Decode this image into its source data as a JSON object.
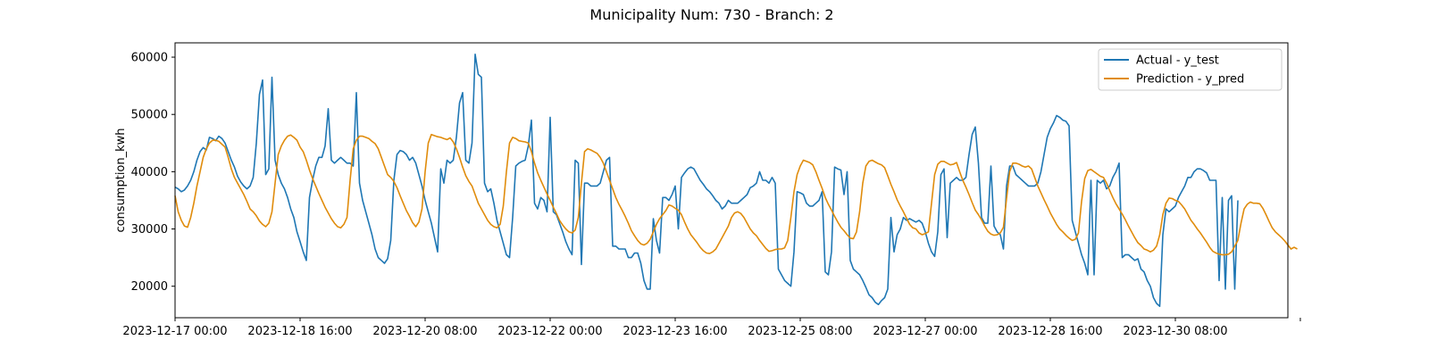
{
  "chart_data": {
    "type": "line",
    "title": "Municipality Num: 730 - Branch: 2",
    "xlabel": "",
    "ylabel": "consumption_kwh",
    "xlim": [
      "2023-12-17 00:00",
      "2023-12-31 20:00"
    ],
    "ylim": [
      14500,
      62500
    ],
    "x_start": "2023-12-17 00:00",
    "x_step_hours": 1,
    "x_ticks": [
      "2023-12-17 00:00",
      "2023-12-18 16:00",
      "2023-12-20 08:00",
      "2023-12-22 00:00",
      "2023-12-23 16:00",
      "2023-12-25 08:00",
      "2023-12-27 00:00",
      "2023-12-28 16:00",
      "2023-12-30 08:00",
      "2023-12-31 23:59"
    ],
    "x_tick_labels": [
      "2023-12-17 00:00",
      "2023-12-18 16:00",
      "2023-12-20 08:00",
      "2023-12-22 00:00",
      "2023-12-23 16:00",
      "2023-12-25 08:00",
      "2023-12-27 00:00",
      "2023-12-28 16:00",
      "2023-12-30 08:00",
      ""
    ],
    "y_ticks": [
      20000,
      30000,
      40000,
      50000,
      60000
    ],
    "y_tick_labels": [
      "20000",
      "30000",
      "40000",
      "50000",
      "60000"
    ],
    "grid": false,
    "legend": {
      "position": "top-right"
    },
    "series": [
      {
        "name": "Actual - y_test",
        "color": "#1f77b4",
        "values": [
          37300,
          37000,
          36500,
          36800,
          37500,
          38500,
          40000,
          42000,
          43500,
          44200,
          43800,
          46000,
          45800,
          45400,
          46200,
          45800,
          45000,
          43500,
          42000,
          40800,
          39200,
          38200,
          37500,
          37000,
          37500,
          39000,
          45000,
          53500,
          56000,
          39500,
          40500,
          56500,
          42000,
          39500,
          38000,
          37000,
          35500,
          33500,
          32000,
          29500,
          27800,
          26000,
          24500,
          35500,
          38500,
          41000,
          42500,
          42500,
          44500,
          51000,
          42000,
          41500,
          42000,
          42500,
          42000,
          41500,
          41500,
          41000,
          53800,
          38000,
          35000,
          33000,
          31000,
          29000,
          26500,
          25000,
          24500,
          24000,
          24800,
          28000,
          38500,
          43000,
          43700,
          43500,
          43000,
          42000,
          42500,
          41500,
          39500,
          37500,
          35000,
          33000,
          31000,
          28500,
          26000,
          40500,
          38000,
          42000,
          41500,
          42000,
          46000,
          52000,
          53800,
          42000,
          41500,
          45000,
          60500,
          57000,
          56500,
          38000,
          36500,
          37000,
          34500,
          31500,
          29500,
          27500,
          25500,
          25000,
          32000,
          41000,
          41500,
          41800,
          42000,
          44500,
          49000,
          34500,
          33500,
          35500,
          35000,
          33000,
          49500,
          33000,
          32500,
          31000,
          29500,
          27800,
          26500,
          25500,
          42000,
          41500,
          23800,
          38000,
          38000,
          37500,
          37500,
          37500,
          38000,
          40000,
          42000,
          42500,
          27000,
          27000,
          26500,
          26500,
          26500,
          25000,
          25000,
          25800,
          25800,
          24000,
          21000,
          19500,
          19500,
          31800,
          28000,
          25800,
          35500,
          35500,
          35000,
          36000,
          37500,
          30000,
          39000,
          39800,
          40500,
          40800,
          40500,
          39500,
          38500,
          37800,
          37000,
          36500,
          35800,
          35000,
          34500,
          33500,
          34000,
          35000,
          34500,
          34500,
          34500,
          35000,
          35500,
          36000,
          37200,
          37500,
          38000,
          40000,
          38500,
          38500,
          38000,
          39000,
          38000,
          23000,
          22000,
          21000,
          20500,
          20000,
          26000,
          36500,
          36300,
          36000,
          34500,
          34000,
          34000,
          34500,
          35000,
          36500,
          22500,
          22000,
          26000,
          40800,
          40500,
          40300,
          36000,
          40000,
          24500,
          23000,
          22500,
          22000,
          21000,
          19800,
          18500,
          18000,
          17200,
          16800,
          17500,
          18000,
          19500,
          32000,
          26000,
          29000,
          30000,
          32000,
          31500,
          31800,
          31500,
          31200,
          31500,
          31000,
          29500,
          27500,
          26000,
          25200,
          29500,
          39500,
          40500,
          28500,
          38000,
          38500,
          39000,
          38500,
          38500,
          39000,
          43000,
          46500,
          47800,
          41500,
          32000,
          31000,
          31000,
          41000,
          30500,
          29500,
          29000,
          26500,
          37500,
          41000,
          41000,
          39500,
          39000,
          38500,
          38000,
          37500,
          37500,
          37500,
          38000,
          40000,
          43000,
          46000,
          47500,
          48500,
          49800,
          49500,
          49000,
          48800,
          48000,
          31500,
          29500,
          27500,
          25500,
          24000,
          22000,
          38500,
          22000,
          38500,
          38000,
          38500,
          37000,
          37500,
          39000,
          40000,
          41500,
          25000,
          25500,
          25500,
          25000,
          24500,
          24800,
          23000,
          22500,
          21000,
          20000,
          18000,
          17000,
          16500,
          29000,
          33500,
          33000,
          33500,
          34000,
          35500,
          36500,
          37500,
          39000,
          39000,
          40000,
          40500,
          40500,
          40200,
          39800,
          38500,
          38500,
          38500,
          21000,
          35500,
          19500,
          35000,
          35800,
          19500,
          35000
        ]
      },
      {
        "name": "Prediction - y_pred",
        "color": "#e08c0c",
        "values": [
          35800,
          33000,
          31500,
          30500,
          30300,
          32000,
          34500,
          37500,
          40000,
          42500,
          44000,
          45000,
          45500,
          45500,
          45300,
          44800,
          44300,
          42500,
          40500,
          39000,
          38000,
          37000,
          36000,
          34800,
          33500,
          33000,
          32300,
          31400,
          30800,
          30400,
          31000,
          33000,
          38000,
          43000,
          44500,
          45500,
          46200,
          46400,
          46000,
          45500,
          44300,
          43500,
          42000,
          40300,
          38800,
          37500,
          36200,
          35000,
          33800,
          32800,
          31800,
          31000,
          30400,
          30200,
          30800,
          32000,
          38500,
          44000,
          45500,
          46200,
          46200,
          46000,
          45800,
          45300,
          44900,
          44000,
          42500,
          41000,
          39500,
          39000,
          38300,
          37200,
          35800,
          34500,
          33200,
          32200,
          31100,
          30400,
          31200,
          33500,
          40000,
          45000,
          46500,
          46300,
          46100,
          46000,
          45800,
          45600,
          45900,
          45200,
          44000,
          42500,
          40800,
          39300,
          38300,
          37500,
          36000,
          34500,
          33500,
          32500,
          31500,
          30800,
          30400,
          30200,
          30800,
          34000,
          40000,
          45000,
          46000,
          45800,
          45400,
          45300,
          45200,
          45000,
          43500,
          41500,
          39800,
          38500,
          37300,
          36100,
          35000,
          33800,
          32700,
          31500,
          30700,
          30000,
          29500,
          29300,
          29800,
          32000,
          38000,
          43500,
          44000,
          43800,
          43500,
          43200,
          42500,
          41500,
          40000,
          38500,
          37000,
          35500,
          34300,
          33300,
          32200,
          31000,
          29700,
          28800,
          28000,
          27400,
          27200,
          27500,
          28200,
          29500,
          30800,
          31800,
          32500,
          33200,
          34200,
          34000,
          33600,
          33300,
          32500,
          31200,
          30000,
          29000,
          28300,
          27600,
          26800,
          26200,
          25800,
          25700,
          26000,
          26500,
          27500,
          28500,
          29500,
          30500,
          32000,
          32800,
          33000,
          32700,
          32000,
          31000,
          30000,
          29300,
          28800,
          28000,
          27300,
          26600,
          26100,
          26200,
          26400,
          26500,
          26500,
          26700,
          28000,
          32000,
          36500,
          39500,
          41000,
          42000,
          41800,
          41600,
          41200,
          40000,
          38500,
          37100,
          35500,
          34300,
          33300,
          32200,
          31200,
          30300,
          29700,
          29000,
          28400,
          28300,
          29500,
          33000,
          38000,
          41000,
          41800,
          42000,
          41700,
          41400,
          41200,
          40700,
          39300,
          37800,
          36500,
          35100,
          34000,
          33000,
          31900,
          30800,
          30200,
          30000,
          29300,
          29000,
          29200,
          29500,
          34500,
          39500,
          41300,
          41800,
          41800,
          41500,
          41200,
          41300,
          41600,
          40000,
          38500,
          37300,
          36000,
          34600,
          33300,
          32500,
          31600,
          30500,
          29600,
          29100,
          28900,
          29000,
          29300,
          30300,
          35300,
          40000,
          41500,
          41500,
          41300,
          41000,
          40800,
          41000,
          40500,
          39000,
          37500,
          36300,
          35100,
          34000,
          32800,
          31800,
          30800,
          30000,
          29500,
          28900,
          28400,
          28000,
          28200,
          29300,
          34800,
          38800,
          40200,
          40400,
          40000,
          39600,
          39200,
          39000,
          38000,
          36700,
          35500,
          34400,
          33500,
          32600,
          31600,
          30500,
          29500,
          28500,
          27600,
          27100,
          26500,
          26300,
          26000,
          26300,
          27000,
          29000,
          32500,
          34500,
          35400,
          35300,
          35000,
          34800,
          34200,
          33500,
          32500,
          31500,
          30800,
          30000,
          29300,
          28500,
          27700,
          26800,
          26100,
          25800,
          25600,
          25500,
          25500,
          25600,
          26000,
          27000,
          28000,
          31000,
          33500,
          34300,
          34700,
          34500,
          34500,
          34400,
          33600,
          32500,
          31300,
          30200,
          29500,
          29000,
          28500,
          27900,
          27200,
          26500,
          26800,
          26500
        ]
      }
    ]
  }
}
